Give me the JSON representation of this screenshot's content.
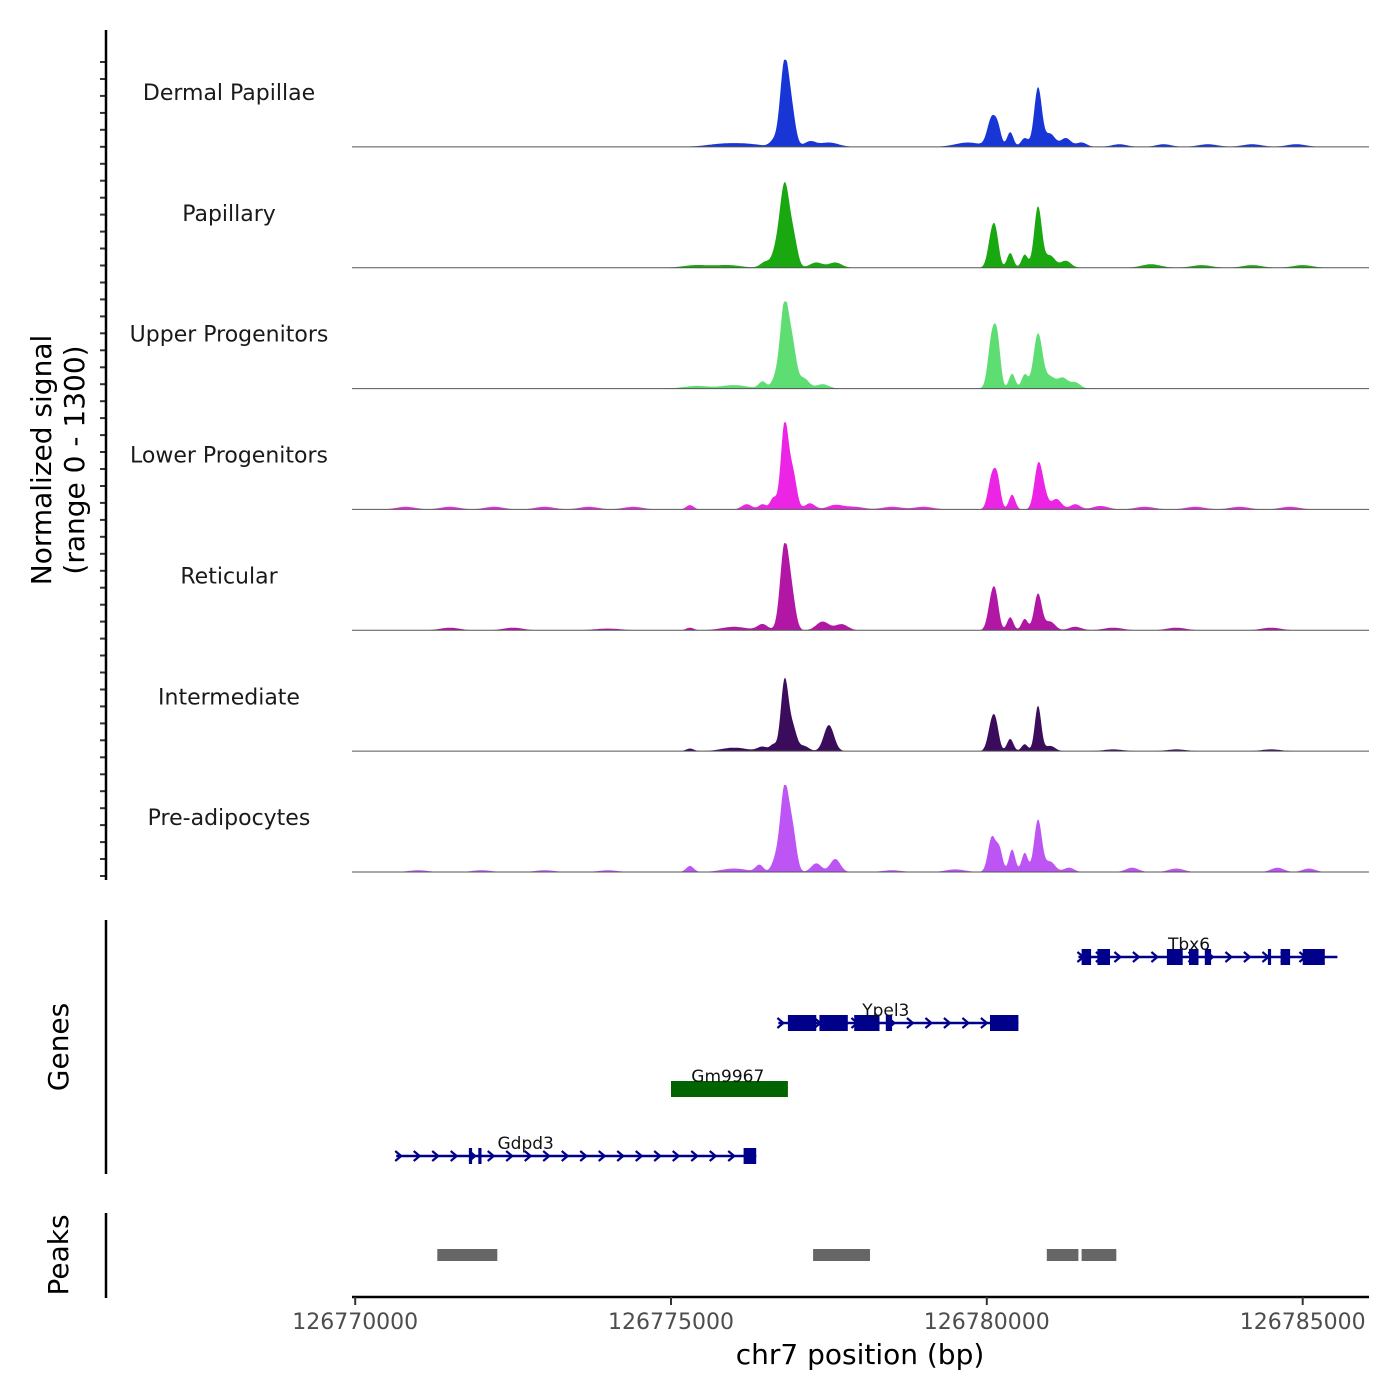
{
  "chart_data": {
    "type": "area",
    "title": "",
    "chromosome": "chr7",
    "xlabel": "chr7 position (bp)",
    "ylabel_line1": "Normalized signal",
    "ylabel_line2": "(range 0 - 1300)",
    "signal_range": [
      0,
      1300
    ],
    "xlim": [
      126769950,
      126786050
    ],
    "data_start": 126769950,
    "data_end": 126785490,
    "x_ticks": [
      126770000,
      126775000,
      126780000,
      126785000
    ],
    "x_tick_labels": [
      "126770000",
      "126775000",
      "126780000",
      "126785000"
    ],
    "ticks_per_track": 7,
    "tracks": [
      {
        "name": "Dermal Papillae",
        "color": "#1836d6",
        "peaks": [
          [
            126775800,
            0.03,
            250
          ],
          [
            126776200,
            0.03,
            250
          ],
          [
            126776620,
            0.06,
            60
          ],
          [
            126776800,
            0.99,
            70
          ],
          [
            126776920,
            0.3,
            60
          ],
          [
            126777200,
            0.06,
            90
          ],
          [
            126777500,
            0.05,
            150
          ],
          [
            126779700,
            0.05,
            200
          ],
          [
            126780080,
            0.33,
            70
          ],
          [
            126780180,
            0.16,
            50
          ],
          [
            126780370,
            0.17,
            50
          ],
          [
            126780600,
            0.1,
            60
          ],
          [
            126780810,
            0.68,
            60
          ],
          [
            126781000,
            0.15,
            80
          ],
          [
            126781250,
            0.1,
            80
          ],
          [
            126781500,
            0.05,
            80
          ],
          [
            126782100,
            0.03,
            120
          ],
          [
            126782800,
            0.03,
            120
          ],
          [
            126783500,
            0.03,
            150
          ],
          [
            126784200,
            0.03,
            150
          ],
          [
            126784900,
            0.03,
            150
          ]
        ]
      },
      {
        "name": "Papillary",
        "color": "#19a80f",
        "peaks": [
          [
            126775400,
            0.03,
            200
          ],
          [
            126775900,
            0.03,
            200
          ],
          [
            126776500,
            0.07,
            80
          ],
          [
            126776650,
            0.12,
            60
          ],
          [
            126776800,
            0.97,
            80
          ],
          [
            126776950,
            0.25,
            60
          ],
          [
            126777300,
            0.06,
            100
          ],
          [
            126777600,
            0.06,
            100
          ],
          [
            126780080,
            0.38,
            60
          ],
          [
            126780150,
            0.25,
            50
          ],
          [
            126780370,
            0.17,
            50
          ],
          [
            126780600,
            0.15,
            50
          ],
          [
            126780810,
            0.7,
            60
          ],
          [
            126781000,
            0.14,
            80
          ],
          [
            126781250,
            0.08,
            80
          ],
          [
            126782600,
            0.04,
            150
          ],
          [
            126783400,
            0.03,
            150
          ],
          [
            126784200,
            0.03,
            150
          ],
          [
            126785000,
            0.03,
            150
          ]
        ]
      },
      {
        "name": "Upper Progenitors",
        "color": "#5ede72",
        "peaks": [
          [
            126775400,
            0.03,
            200
          ],
          [
            126776000,
            0.04,
            200
          ],
          [
            126776450,
            0.08,
            60
          ],
          [
            126776650,
            0.1,
            60
          ],
          [
            126776800,
            1.0,
            70
          ],
          [
            126776930,
            0.4,
            60
          ],
          [
            126777100,
            0.12,
            80
          ],
          [
            126777400,
            0.05,
            100
          ],
          [
            126780080,
            0.58,
            60
          ],
          [
            126780170,
            0.47,
            50
          ],
          [
            126780400,
            0.17,
            50
          ],
          [
            126780600,
            0.16,
            50
          ],
          [
            126780810,
            0.63,
            70
          ],
          [
            126781000,
            0.13,
            80
          ],
          [
            126781200,
            0.12,
            80
          ],
          [
            126781400,
            0.07,
            80
          ]
        ]
      },
      {
        "name": "Lower Progenitors",
        "color": "#ec24e6",
        "peaks": [
          [
            126770800,
            0.03,
            150
          ],
          [
            126771500,
            0.03,
            150
          ],
          [
            126772200,
            0.03,
            150
          ],
          [
            126773000,
            0.03,
            150
          ],
          [
            126773700,
            0.03,
            150
          ],
          [
            126774400,
            0.03,
            150
          ],
          [
            126775300,
            0.05,
            60
          ],
          [
            126776200,
            0.06,
            80
          ],
          [
            126776450,
            0.06,
            60
          ],
          [
            126776620,
            0.13,
            50
          ],
          [
            126776800,
            0.99,
            60
          ],
          [
            126776930,
            0.4,
            60
          ],
          [
            126777200,
            0.07,
            80
          ],
          [
            126777600,
            0.05,
            120
          ],
          [
            126777900,
            0.03,
            150
          ],
          [
            126778500,
            0.03,
            150
          ],
          [
            126779000,
            0.03,
            150
          ],
          [
            126780080,
            0.37,
            60
          ],
          [
            126780170,
            0.3,
            50
          ],
          [
            126780400,
            0.17,
            50
          ],
          [
            126780810,
            0.48,
            60
          ],
          [
            126780900,
            0.18,
            60
          ],
          [
            126781100,
            0.12,
            80
          ],
          [
            126781400,
            0.06,
            80
          ],
          [
            126781800,
            0.04,
            120
          ],
          [
            126782500,
            0.03,
            150
          ],
          [
            126783300,
            0.03,
            150
          ],
          [
            126784000,
            0.03,
            150
          ],
          [
            126784800,
            0.03,
            150
          ]
        ]
      },
      {
        "name": "Reticular",
        "color": "#b116a5",
        "peaks": [
          [
            126771500,
            0.03,
            150
          ],
          [
            126772500,
            0.03,
            150
          ],
          [
            126774000,
            0.02,
            200
          ],
          [
            126775300,
            0.03,
            60
          ],
          [
            126776000,
            0.04,
            200
          ],
          [
            126776450,
            0.07,
            80
          ],
          [
            126776800,
            0.99,
            70
          ],
          [
            126776920,
            0.3,
            60
          ],
          [
            126777400,
            0.1,
            100
          ],
          [
            126777700,
            0.07,
            100
          ],
          [
            126780080,
            0.37,
            60
          ],
          [
            126780150,
            0.25,
            50
          ],
          [
            126780370,
            0.15,
            50
          ],
          [
            126780600,
            0.13,
            50
          ],
          [
            126780810,
            0.42,
            60
          ],
          [
            126781000,
            0.1,
            80
          ],
          [
            126781400,
            0.04,
            100
          ],
          [
            126782000,
            0.03,
            150
          ],
          [
            126783000,
            0.03,
            150
          ],
          [
            126784500,
            0.03,
            150
          ]
        ]
      },
      {
        "name": "Intermediate",
        "color": "#3b0b5c",
        "peaks": [
          [
            126775300,
            0.03,
            60
          ],
          [
            126776000,
            0.04,
            200
          ],
          [
            126776450,
            0.05,
            80
          ],
          [
            126776620,
            0.07,
            50
          ],
          [
            126776800,
            0.82,
            60
          ],
          [
            126776930,
            0.25,
            60
          ],
          [
            126777100,
            0.06,
            80
          ],
          [
            126777500,
            0.3,
            80
          ],
          [
            126780080,
            0.32,
            60
          ],
          [
            126780150,
            0.2,
            50
          ],
          [
            126780370,
            0.14,
            50
          ],
          [
            126780600,
            0.08,
            50
          ],
          [
            126780810,
            0.52,
            50
          ],
          [
            126781000,
            0.06,
            80
          ],
          [
            126782000,
            0.02,
            150
          ],
          [
            126783000,
            0.02,
            150
          ],
          [
            126784500,
            0.02,
            150
          ]
        ]
      },
      {
        "name": "Pre-adipocytes",
        "color": "#bc55f4",
        "peaks": [
          [
            126771000,
            0.02,
            150
          ],
          [
            126772000,
            0.02,
            150
          ],
          [
            126773000,
            0.02,
            150
          ],
          [
            126774000,
            0.02,
            150
          ],
          [
            126775300,
            0.07,
            60
          ],
          [
            126776000,
            0.04,
            200
          ],
          [
            126776400,
            0.08,
            60
          ],
          [
            126776650,
            0.12,
            60
          ],
          [
            126776800,
            0.98,
            70
          ],
          [
            126776930,
            0.4,
            60
          ],
          [
            126777300,
            0.1,
            80
          ],
          [
            126777600,
            0.15,
            80
          ],
          [
            126778500,
            0.02,
            150
          ],
          [
            126779500,
            0.03,
            150
          ],
          [
            126780080,
            0.4,
            60
          ],
          [
            126780200,
            0.25,
            50
          ],
          [
            126780400,
            0.26,
            50
          ],
          [
            126780600,
            0.22,
            50
          ],
          [
            126780810,
            0.6,
            60
          ],
          [
            126781000,
            0.12,
            80
          ],
          [
            126781300,
            0.05,
            80
          ],
          [
            126782300,
            0.05,
            100
          ],
          [
            126783000,
            0.04,
            120
          ],
          [
            126784600,
            0.05,
            100
          ],
          [
            126785100,
            0.04,
            100
          ]
        ]
      }
    ],
    "genes_label": "Genes",
    "genes": [
      {
        "name": "Tbx6",
        "color": "#00008b",
        "strand": "+",
        "row": 0,
        "start": 126781450,
        "end": 126785550,
        "label_pos": 126783200,
        "exons": [
          [
            126781500,
            126781650
          ],
          [
            126781750,
            126781950
          ],
          [
            126782850,
            126783100
          ],
          [
            126783200,
            126783350
          ],
          [
            126783450,
            126783550
          ],
          [
            126784450,
            126784500
          ],
          [
            126784650,
            126784800
          ],
          [
            126785000,
            126785350
          ]
        ]
      },
      {
        "name": "Ypel3",
        "color": "#00008b",
        "strand": "+",
        "row": 1,
        "start": 126776700,
        "end": 126780500,
        "label_pos": 126778400,
        "exons": [
          [
            126776850,
            126777300
          ],
          [
            126777350,
            126777800
          ],
          [
            126777900,
            126778300
          ],
          [
            126778400,
            126778500
          ],
          [
            126780050,
            126780500
          ]
        ]
      },
      {
        "name": "Gm9967",
        "color": "#006400",
        "strand": "",
        "row": 2,
        "start": 126775000,
        "end": 126776850,
        "label_pos": 126775900,
        "exons": [
          [
            126775000,
            126776850
          ]
        ]
      },
      {
        "name": "Gdpd3",
        "color": "#00008b",
        "strand": "+",
        "row": 3,
        "start": 126770650,
        "end": 126776350,
        "label_pos": 126772700,
        "exons": [
          [
            126771800,
            126771850
          ],
          [
            126771950,
            126772000
          ],
          [
            126776150,
            126776350
          ]
        ]
      }
    ],
    "peaks_label": "Peaks",
    "peak_regions": [
      [
        126771300,
        126772250
      ],
      [
        126777250,
        126778150
      ],
      [
        126780950,
        126781450
      ],
      [
        126781500,
        126782050
      ]
    ]
  }
}
